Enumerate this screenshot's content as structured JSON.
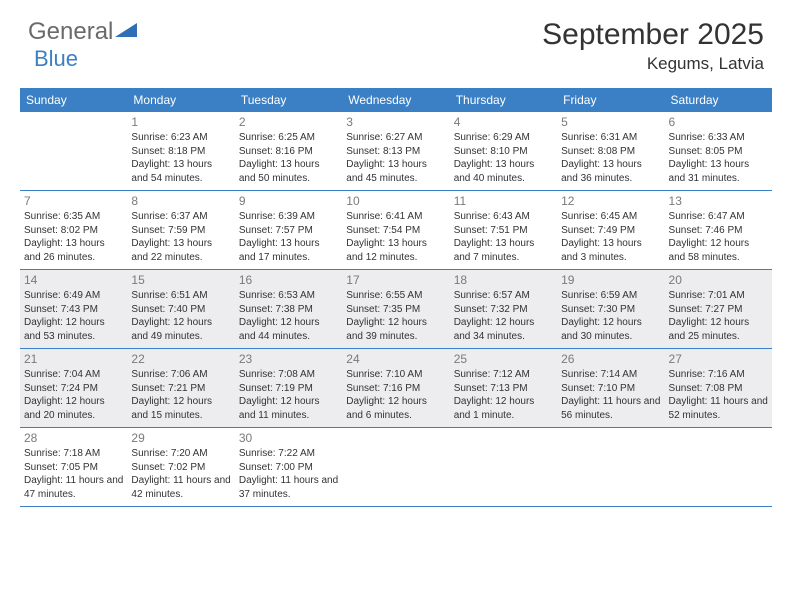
{
  "brand": {
    "general": "General",
    "blue": "Blue"
  },
  "title": "September 2025",
  "location": "Kegums, Latvia",
  "colors": {
    "header_bg": "#3b7fc4",
    "header_text": "#ffffff",
    "row_border": "#3b7fc4",
    "shaded_bg": "#ededef",
    "text": "#333333",
    "logo_gray": "#6a6a6a",
    "logo_blue": "#3b7fc4"
  },
  "day_names": [
    "Sunday",
    "Monday",
    "Tuesday",
    "Wednesday",
    "Thursday",
    "Friday",
    "Saturday"
  ],
  "weeks": [
    [
      {
        "blank": true
      },
      {
        "n": "1",
        "sr": "Sunrise: 6:23 AM",
        "ss": "Sunset: 8:18 PM",
        "dl": "Daylight: 13 hours and 54 minutes."
      },
      {
        "n": "2",
        "sr": "Sunrise: 6:25 AM",
        "ss": "Sunset: 8:16 PM",
        "dl": "Daylight: 13 hours and 50 minutes."
      },
      {
        "n": "3",
        "sr": "Sunrise: 6:27 AM",
        "ss": "Sunset: 8:13 PM",
        "dl": "Daylight: 13 hours and 45 minutes."
      },
      {
        "n": "4",
        "sr": "Sunrise: 6:29 AM",
        "ss": "Sunset: 8:10 PM",
        "dl": "Daylight: 13 hours and 40 minutes."
      },
      {
        "n": "5",
        "sr": "Sunrise: 6:31 AM",
        "ss": "Sunset: 8:08 PM",
        "dl": "Daylight: 13 hours and 36 minutes."
      },
      {
        "n": "6",
        "sr": "Sunrise: 6:33 AM",
        "ss": "Sunset: 8:05 PM",
        "dl": "Daylight: 13 hours and 31 minutes."
      }
    ],
    [
      {
        "n": "7",
        "sr": "Sunrise: 6:35 AM",
        "ss": "Sunset: 8:02 PM",
        "dl": "Daylight: 13 hours and 26 minutes."
      },
      {
        "n": "8",
        "sr": "Sunrise: 6:37 AM",
        "ss": "Sunset: 7:59 PM",
        "dl": "Daylight: 13 hours and 22 minutes."
      },
      {
        "n": "9",
        "sr": "Sunrise: 6:39 AM",
        "ss": "Sunset: 7:57 PM",
        "dl": "Daylight: 13 hours and 17 minutes."
      },
      {
        "n": "10",
        "sr": "Sunrise: 6:41 AM",
        "ss": "Sunset: 7:54 PM",
        "dl": "Daylight: 13 hours and 12 minutes."
      },
      {
        "n": "11",
        "sr": "Sunrise: 6:43 AM",
        "ss": "Sunset: 7:51 PM",
        "dl": "Daylight: 13 hours and 7 minutes."
      },
      {
        "n": "12",
        "sr": "Sunrise: 6:45 AM",
        "ss": "Sunset: 7:49 PM",
        "dl": "Daylight: 13 hours and 3 minutes."
      },
      {
        "n": "13",
        "sr": "Sunrise: 6:47 AM",
        "ss": "Sunset: 7:46 PM",
        "dl": "Daylight: 12 hours and 58 minutes."
      }
    ],
    [
      {
        "n": "14",
        "sr": "Sunrise: 6:49 AM",
        "ss": "Sunset: 7:43 PM",
        "dl": "Daylight: 12 hours and 53 minutes.",
        "shade": true
      },
      {
        "n": "15",
        "sr": "Sunrise: 6:51 AM",
        "ss": "Sunset: 7:40 PM",
        "dl": "Daylight: 12 hours and 49 minutes.",
        "shade": true
      },
      {
        "n": "16",
        "sr": "Sunrise: 6:53 AM",
        "ss": "Sunset: 7:38 PM",
        "dl": "Daylight: 12 hours and 44 minutes.",
        "shade": true
      },
      {
        "n": "17",
        "sr": "Sunrise: 6:55 AM",
        "ss": "Sunset: 7:35 PM",
        "dl": "Daylight: 12 hours and 39 minutes.",
        "shade": true
      },
      {
        "n": "18",
        "sr": "Sunrise: 6:57 AM",
        "ss": "Sunset: 7:32 PM",
        "dl": "Daylight: 12 hours and 34 minutes.",
        "shade": true
      },
      {
        "n": "19",
        "sr": "Sunrise: 6:59 AM",
        "ss": "Sunset: 7:30 PM",
        "dl": "Daylight: 12 hours and 30 minutes.",
        "shade": true
      },
      {
        "n": "20",
        "sr": "Sunrise: 7:01 AM",
        "ss": "Sunset: 7:27 PM",
        "dl": "Daylight: 12 hours and 25 minutes.",
        "shade": true
      }
    ],
    [
      {
        "n": "21",
        "sr": "Sunrise: 7:04 AM",
        "ss": "Sunset: 7:24 PM",
        "dl": "Daylight: 12 hours and 20 minutes.",
        "shade": true
      },
      {
        "n": "22",
        "sr": "Sunrise: 7:06 AM",
        "ss": "Sunset: 7:21 PM",
        "dl": "Daylight: 12 hours and 15 minutes.",
        "shade": true
      },
      {
        "n": "23",
        "sr": "Sunrise: 7:08 AM",
        "ss": "Sunset: 7:19 PM",
        "dl": "Daylight: 12 hours and 11 minutes.",
        "shade": true
      },
      {
        "n": "24",
        "sr": "Sunrise: 7:10 AM",
        "ss": "Sunset: 7:16 PM",
        "dl": "Daylight: 12 hours and 6 minutes.",
        "shade": true
      },
      {
        "n": "25",
        "sr": "Sunrise: 7:12 AM",
        "ss": "Sunset: 7:13 PM",
        "dl": "Daylight: 12 hours and 1 minute.",
        "shade": true
      },
      {
        "n": "26",
        "sr": "Sunrise: 7:14 AM",
        "ss": "Sunset: 7:10 PM",
        "dl": "Daylight: 11 hours and 56 minutes.",
        "shade": true
      },
      {
        "n": "27",
        "sr": "Sunrise: 7:16 AM",
        "ss": "Sunset: 7:08 PM",
        "dl": "Daylight: 11 hours and 52 minutes.",
        "shade": true
      }
    ],
    [
      {
        "n": "28",
        "sr": "Sunrise: 7:18 AM",
        "ss": "Sunset: 7:05 PM",
        "dl": "Daylight: 11 hours and 47 minutes."
      },
      {
        "n": "29",
        "sr": "Sunrise: 7:20 AM",
        "ss": "Sunset: 7:02 PM",
        "dl": "Daylight: 11 hours and 42 minutes."
      },
      {
        "n": "30",
        "sr": "Sunrise: 7:22 AM",
        "ss": "Sunset: 7:00 PM",
        "dl": "Daylight: 11 hours and 37 minutes."
      },
      {
        "blank": true
      },
      {
        "blank": true
      },
      {
        "blank": true
      },
      {
        "blank": true
      }
    ]
  ]
}
